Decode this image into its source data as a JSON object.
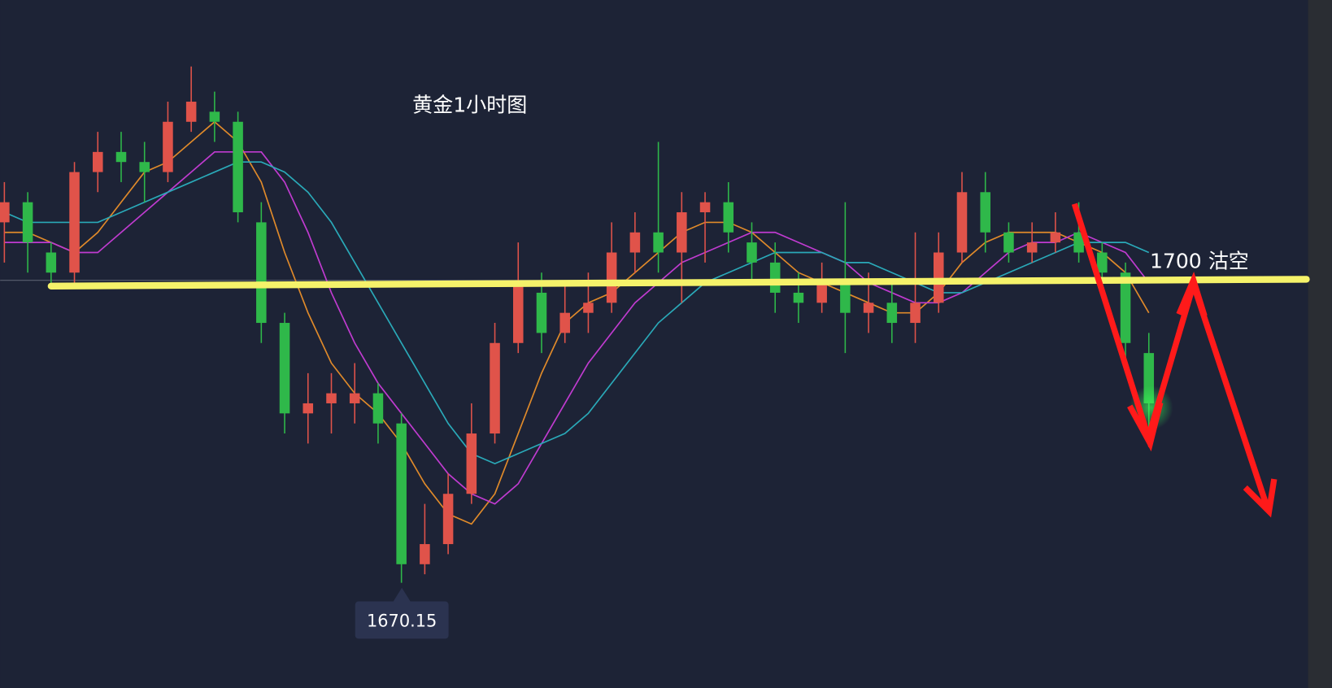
{
  "chart_data": {
    "type": "candlestick",
    "title": "黄金1小时图",
    "ylim": [
      1658,
      1726
    ],
    "up_color": "#e0534a",
    "down_color": "#2fb84a",
    "open": [
      1706,
      1708,
      1703,
      1701,
      1711,
      1713,
      1712,
      1711,
      1716,
      1717,
      1716,
      1706,
      1696,
      1687,
      1688,
      1688,
      1689,
      1686,
      1672,
      1674,
      1679,
      1685,
      1694,
      1699,
      1695,
      1697,
      1698,
      1703,
      1705,
      1703,
      1707,
      1708,
      1704,
      1702,
      1699,
      1698,
      1700,
      1697,
      1698,
      1696,
      1698,
      1703,
      1709,
      1705,
      1703,
      1704,
      1705,
      1703,
      1701,
      1693
    ],
    "close": [
      1708,
      1704,
      1701,
      1711,
      1713,
      1712,
      1711,
      1716,
      1718,
      1716,
      1707,
      1696,
      1687,
      1688,
      1689,
      1689,
      1686,
      1672,
      1674,
      1679,
      1685,
      1694,
      1700,
      1695,
      1697,
      1698,
      1703,
      1705,
      1703,
      1707,
      1708,
      1705,
      1702,
      1699,
      1698,
      1700,
      1697,
      1698,
      1696,
      1698,
      1703,
      1709,
      1705,
      1703,
      1704,
      1705,
      1703,
      1701,
      1694,
      1688
    ],
    "high": [
      1710,
      1709,
      1704,
      1712,
      1715,
      1715,
      1714,
      1718,
      1721.5,
      1719,
      1717,
      1708,
      1697,
      1691,
      1691,
      1692,
      1690,
      1687,
      1678,
      1681,
      1688,
      1696,
      1704,
      1701,
      1700,
      1701,
      1706,
      1707,
      1714,
      1709,
      1709,
      1710,
      1706,
      1704,
      1701,
      1702,
      1708,
      1701,
      1700,
      1705,
      1705,
      1711,
      1711,
      1706,
      1706,
      1707,
      1708,
      1704,
      1702,
      1695
    ],
    "low": [
      1702,
      1701,
      1699.5,
      1700,
      1709,
      1710,
      1708,
      1710,
      1715,
      1714,
      1706,
      1694,
      1685,
      1684,
      1685,
      1686,
      1684,
      1670.15,
      1671,
      1673,
      1678,
      1684,
      1693,
      1693,
      1694,
      1695,
      1697,
      1701,
      1701,
      1698,
      1702,
      1703,
      1700,
      1697,
      1696,
      1697,
      1693,
      1695,
      1694,
      1694,
      1697,
      1702,
      1703,
      1702,
      1702,
      1703,
      1702,
      1699,
      1692,
      1685
    ],
    "series": [
      {
        "color": "#e08a2a",
        "values": [
          1705,
          1705,
          1704,
          1703,
          1705,
          1708,
          1711,
          1712,
          1714,
          1716,
          1714,
          1710,
          1703,
          1697,
          1692,
          1689,
          1687,
          1684,
          1680,
          1677,
          1676,
          1679,
          1685,
          1691,
          1696,
          1698,
          1699,
          1701,
          1703,
          1705,
          1706,
          1706,
          1705,
          1703,
          1701,
          1700,
          1699,
          1698,
          1697,
          1697,
          1699,
          1702,
          1704,
          1705,
          1705,
          1705,
          1704,
          1703,
          1701,
          1697
        ]
      },
      {
        "color": "#c03bd0",
        "values": [
          1704,
          1704,
          1704,
          1703,
          1703,
          1705,
          1707,
          1709,
          1711,
          1713,
          1713,
          1713,
          1710,
          1705,
          1699,
          1694,
          1690,
          1687,
          1684,
          1681,
          1679,
          1678,
          1680,
          1684,
          1688,
          1692,
          1695,
          1698,
          1700,
          1702,
          1703,
          1704,
          1705,
          1705,
          1704,
          1703,
          1702,
          1700,
          1699,
          1698,
          1698,
          1699,
          1701,
          1703,
          1704,
          1704,
          1705,
          1704,
          1703,
          1700
        ]
      },
      {
        "color": "#2aa9b8",
        "values": [
          1707,
          1706,
          1706,
          1706,
          1706,
          1707,
          1708,
          1709,
          1710,
          1711,
          1712,
          1712,
          1711,
          1709,
          1706,
          1702,
          1698,
          1694,
          1690,
          1686,
          1683,
          1682,
          1683,
          1684,
          1685,
          1687,
          1690,
          1693,
          1696,
          1698,
          1700,
          1701,
          1702,
          1703,
          1703,
          1703,
          1702,
          1702,
          1701,
          1700,
          1699,
          1699,
          1700,
          1701,
          1702,
          1703,
          1704,
          1704,
          1704,
          1703
        ]
      }
    ],
    "hline": {
      "value": 1700,
      "color": "#f5f26a"
    },
    "annotation": "1700 沽空"
  }
}
